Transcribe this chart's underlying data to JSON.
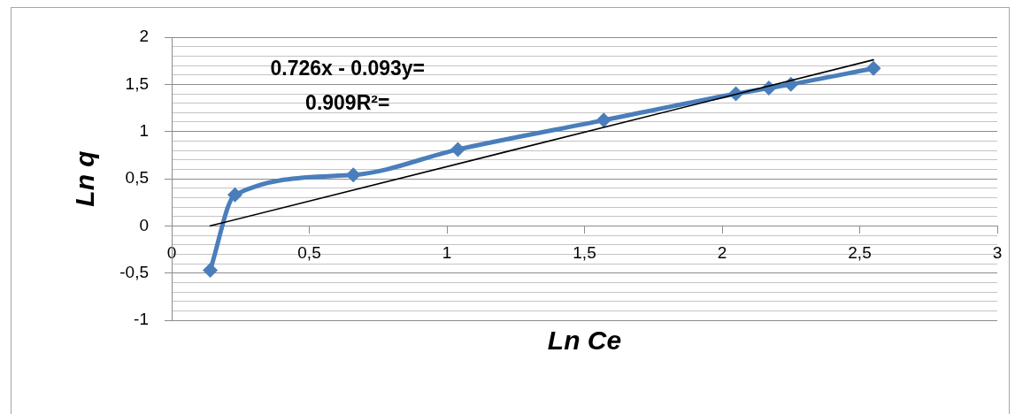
{
  "chart_data": {
    "type": "line",
    "xlabel": "Ln Ce",
    "ylabel": "Ln q",
    "annotations": [
      "0.726x - 0.093y=",
      "0.909R²="
    ],
    "xlim": [
      0,
      3
    ],
    "ylim": [
      -1,
      2
    ],
    "xticks": [
      0,
      {
        "value": 0.5,
        "label": "0,5"
      },
      1,
      {
        "value": 1.5,
        "label": "1,5"
      },
      2,
      {
        "value": 2.5,
        "label": "2,5"
      },
      3
    ],
    "yticks": [
      -1,
      {
        "value": -0.9,
        "label": null
      },
      {
        "value": -0.8,
        "label": null
      },
      {
        "value": -0.7,
        "label": null
      },
      {
        "value": -0.6,
        "label": null
      },
      {
        "value": -0.5,
        "label": "-0,5"
      },
      {
        "value": -0.4,
        "label": null
      },
      {
        "value": -0.3,
        "label": null
      },
      {
        "value": -0.2,
        "label": null
      },
      {
        "value": -0.1,
        "label": null
      },
      0,
      {
        "value": 0.1,
        "label": null
      },
      {
        "value": 0.2,
        "label": null
      },
      {
        "value": 0.3,
        "label": null
      },
      {
        "value": 0.4,
        "label": null
      },
      {
        "value": 0.5,
        "label": "0,5"
      },
      {
        "value": 0.6,
        "label": null
      },
      {
        "value": 0.7,
        "label": null
      },
      {
        "value": 0.8,
        "label": null
      },
      {
        "value": 0.9,
        "label": null
      },
      1,
      {
        "value": 1.1,
        "label": null
      },
      {
        "value": 1.2,
        "label": null
      },
      {
        "value": 1.3,
        "label": null
      },
      {
        "value": 1.4,
        "label": null
      },
      {
        "value": 1.5,
        "label": "1,5"
      },
      {
        "value": 1.6,
        "label": null
      },
      {
        "value": 1.7,
        "label": null
      },
      {
        "value": 1.8,
        "label": null
      },
      {
        "value": 1.9,
        "label": null
      },
      2
    ],
    "grid": "y",
    "legend": false,
    "marker": "diamond",
    "series": [
      {
        "color": "#4a7ebb",
        "x": [
          0.14,
          0.23,
          0.66,
          1.04,
          1.57,
          2.05,
          2.17,
          2.25,
          2.55
        ],
        "values": [
          -0.47,
          0.33,
          0.54,
          0.81,
          1.12,
          1.4,
          1.46,
          1.5,
          1.67
        ]
      },
      {
        "type": "line",
        "color": "#000000",
        "marker": "none",
        "x": [
          0.14,
          2.55
        ],
        "values": [
          0,
          1.76
        ]
      }
    ]
  }
}
